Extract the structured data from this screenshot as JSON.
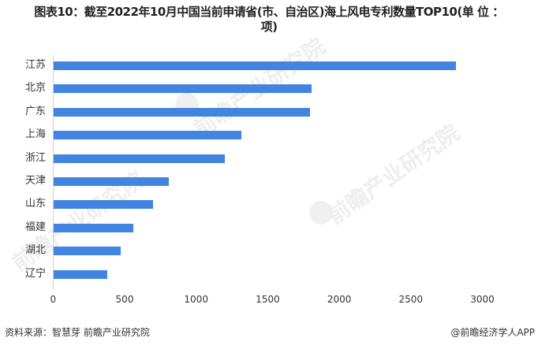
{
  "chart_data": {
    "type": "bar",
    "orientation": "horizontal",
    "title": "图表10：截至2022年10月中国当前申请省(市、自治区)海上风电专利数量TOP10(单 位 ：项)",
    "title_line1": "图表10：截至2022年10月中国当前申请省(市、自治区)海上风电专利数量TOP10(单 位 ：",
    "title_line2": "项)",
    "categories": [
      "江苏",
      "北京",
      "广东",
      "上海",
      "浙江",
      "天津",
      "山东",
      "福建",
      "湖北",
      "辽宁"
    ],
    "values": [
      2815,
      1806,
      1795,
      1316,
      1200,
      809,
      698,
      561,
      473,
      379
    ],
    "xlabel": "",
    "ylabel": "",
    "xlim": [
      0,
      3000
    ],
    "xticks": [
      "0",
      "500",
      "1000",
      "1500",
      "2000",
      "2500",
      "3000"
    ],
    "grid": false,
    "legend": null,
    "bar_color": "#4185e0"
  },
  "footer": {
    "source": "资料来源：智慧芽 前瞻产业研究院",
    "credit": "@前瞻经济学人APP"
  },
  "watermark": {
    "text": "前瞻产业研究院"
  }
}
